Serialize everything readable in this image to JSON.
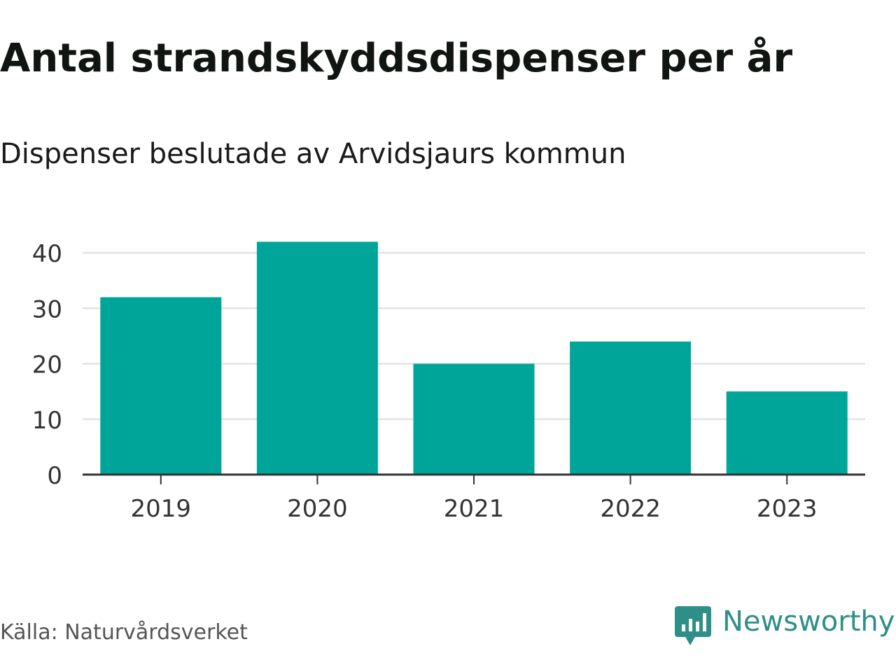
{
  "header": {
    "title": "Antal strandskyddsdispenser per år",
    "subtitle": "Dispenser beslutade av Arvidsjaurs kommun"
  },
  "footer": {
    "source": "Källa: Naturvårdsverket",
    "brand": "Newsworthy",
    "brand_icon": "newsworthy-logo-icon"
  },
  "colors": {
    "bar": "#00a59a",
    "grid": "#dddddd",
    "axis": "#333333",
    "brand": "#2e8f87"
  },
  "chart_data": {
    "type": "bar",
    "title": "Antal strandskyddsdispenser per år",
    "subtitle": "Dispenser beslutade av Arvidsjaurs kommun",
    "categories": [
      "2019",
      "2020",
      "2021",
      "2022",
      "2023"
    ],
    "values": [
      32,
      42,
      20,
      24,
      15
    ],
    "xlabel": "",
    "ylabel": "",
    "ylim": [
      0,
      40
    ],
    "yticks": [
      0,
      10,
      20,
      30,
      40
    ],
    "grid": true,
    "legend": "none"
  }
}
